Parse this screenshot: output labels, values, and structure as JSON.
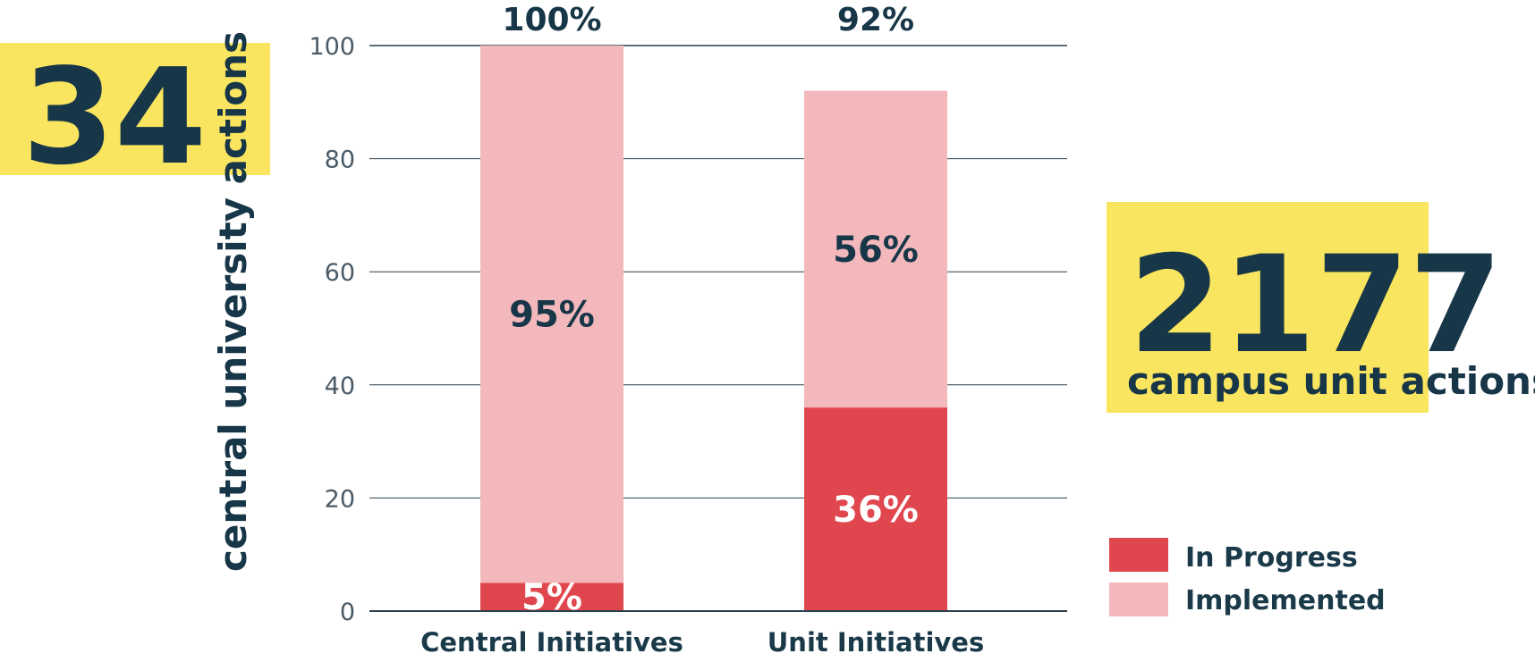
{
  "left_callout": {
    "number": "34",
    "caption": "central university actions"
  },
  "right_callout": {
    "number": "2177",
    "caption": "campus unit actions"
  },
  "colors": {
    "in_progress": "#e0464d",
    "implemented": "#f3b8bb",
    "highlight": "#f9e55f",
    "text_dark": "#173647",
    "grid": "#2b3f4c"
  },
  "chart_data": {
    "type": "bar",
    "stacked": true,
    "categories": [
      "Central Initiatives",
      "Unit Initiatives"
    ],
    "series": [
      {
        "name": "In Progress",
        "values": [
          5,
          36
        ],
        "labels": [
          "5%",
          "36%"
        ]
      },
      {
        "name": "Implemented",
        "values": [
          95,
          56
        ],
        "labels": [
          "95%",
          "56%"
        ]
      }
    ],
    "totals": [
      "100%",
      "92%"
    ],
    "ylim": [
      0,
      100
    ],
    "yticks": [
      0,
      20,
      40,
      60,
      80,
      100
    ],
    "grid": true,
    "legend_position": "bottom-right",
    "xlabel": "",
    "ylabel": ""
  }
}
